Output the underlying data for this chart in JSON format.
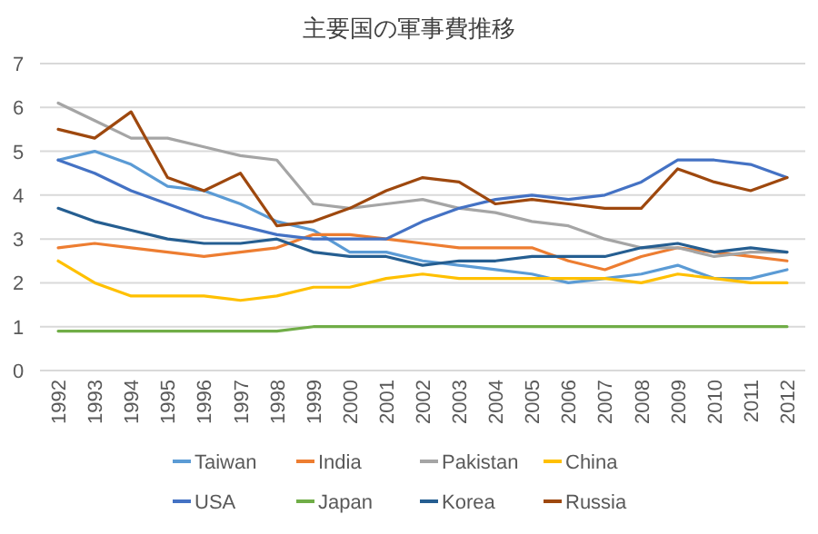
{
  "chart_data": {
    "type": "line",
    "title": "主要国の軍事費推移",
    "categories": [
      "1992",
      "1993",
      "1994",
      "1995",
      "1996",
      "1997",
      "1998",
      "1999",
      "2000",
      "2001",
      "2002",
      "2003",
      "2004",
      "2005",
      "2006",
      "2007",
      "2008",
      "2009",
      "2010",
      "2011",
      "2012"
    ],
    "ylim": [
      0,
      7
    ],
    "yticks": [
      0,
      1,
      2,
      3,
      4,
      5,
      6,
      7
    ],
    "grid": "y",
    "legend": "bottom",
    "marker": "none",
    "line_style": "solid",
    "series": [
      {
        "name": "Taiwan",
        "color": "#5b9bd5",
        "values": [
          4.8,
          5.0,
          4.7,
          4.2,
          4.1,
          3.8,
          3.4,
          3.2,
          2.7,
          2.7,
          2.5,
          2.4,
          2.3,
          2.2,
          2.0,
          2.1,
          2.2,
          2.4,
          2.1,
          2.1,
          2.3
        ]
      },
      {
        "name": "India",
        "color": "#ed7d31",
        "values": [
          2.8,
          2.9,
          2.8,
          2.7,
          2.6,
          2.7,
          2.8,
          3.1,
          3.1,
          3.0,
          2.9,
          2.8,
          2.8,
          2.8,
          2.5,
          2.3,
          2.6,
          2.8,
          2.7,
          2.6,
          2.5
        ]
      },
      {
        "name": "Pakistan",
        "color": "#a5a5a5",
        "values": [
          6.1,
          5.7,
          5.3,
          5.3,
          5.1,
          4.9,
          4.8,
          3.8,
          3.7,
          3.8,
          3.9,
          3.7,
          3.6,
          3.4,
          3.3,
          3.0,
          2.8,
          2.8,
          2.6,
          2.7,
          2.7
        ]
      },
      {
        "name": "China",
        "color": "#ffc000",
        "values": [
          2.5,
          2.0,
          1.7,
          1.7,
          1.7,
          1.6,
          1.7,
          1.9,
          1.9,
          2.1,
          2.2,
          2.1,
          2.1,
          2.1,
          2.1,
          2.1,
          2.0,
          2.2,
          2.1,
          2.0,
          2.0
        ]
      },
      {
        "name": "USA",
        "color": "#4472c4",
        "values": [
          4.8,
          4.5,
          4.1,
          3.8,
          3.5,
          3.3,
          3.1,
          3.0,
          3.0,
          3.0,
          3.4,
          3.7,
          3.9,
          4.0,
          3.9,
          4.0,
          4.3,
          4.8,
          4.8,
          4.7,
          4.4
        ]
      },
      {
        "name": "Japan",
        "color": "#70ad47",
        "values": [
          0.9,
          0.9,
          0.9,
          0.9,
          0.9,
          0.9,
          0.9,
          1.0,
          1.0,
          1.0,
          1.0,
          1.0,
          1.0,
          1.0,
          1.0,
          1.0,
          1.0,
          1.0,
          1.0,
          1.0,
          1.0
        ]
      },
      {
        "name": "Korea",
        "color": "#255e91",
        "values": [
          3.7,
          3.4,
          3.2,
          3.0,
          2.9,
          2.9,
          3.0,
          2.7,
          2.6,
          2.6,
          2.4,
          2.5,
          2.5,
          2.6,
          2.6,
          2.6,
          2.8,
          2.9,
          2.7,
          2.8,
          2.7
        ]
      },
      {
        "name": "Russia",
        "color": "#9e480e",
        "values": [
          5.5,
          5.3,
          5.9,
          4.4,
          4.1,
          4.5,
          3.3,
          3.4,
          3.7,
          4.1,
          4.4,
          4.3,
          3.8,
          3.9,
          3.8,
          3.7,
          3.7,
          4.6,
          4.3,
          4.1,
          4.4
        ]
      }
    ]
  }
}
